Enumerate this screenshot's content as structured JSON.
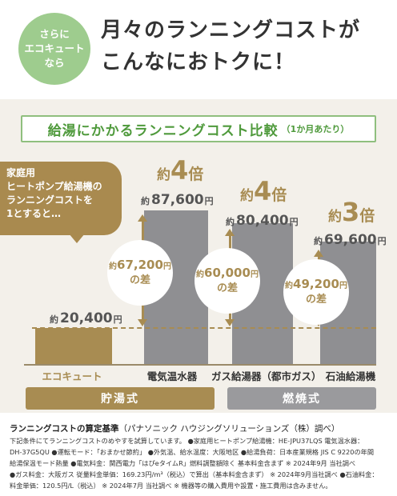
{
  "badge": {
    "line1": "さらに",
    "line2": "エコキュート",
    "line3": "なら"
  },
  "headline": {
    "line1": "月々のランニングコストが",
    "line2": "こんなにおトクに！"
  },
  "panel": {
    "title": "給湯にかかるランニングコスト比較",
    "subtitle": "（1か月あたり）"
  },
  "callout": {
    "line1": "家庭用",
    "line2": "ヒートポンプ給湯機の",
    "line3": "ランニングコストを",
    "line4": "1とすると…"
  },
  "bars": [
    {
      "label": "エコキュート",
      "price_prefix": "約",
      "price": "20,400",
      "price_unit": "円"
    },
    {
      "label": "電気温水器",
      "price_prefix": "約",
      "price": "87,600",
      "price_unit": "円",
      "mult_prefix": "約",
      "mult": "4",
      "mult_unit": "倍",
      "diff_prefix": "約",
      "diff": "67,200",
      "diff_unit": "円",
      "diff_suffix": "の差"
    },
    {
      "label": "ガス給湯器（都市ガス）",
      "price_prefix": "約",
      "price": "80,400",
      "price_unit": "円",
      "mult_prefix": "約",
      "mult": "4",
      "mult_unit": "倍",
      "diff_prefix": "約",
      "diff": "60,000",
      "diff_unit": "円",
      "diff_suffix": "の差"
    },
    {
      "label": "石油給湯機",
      "price_prefix": "約",
      "price": "69,600",
      "price_unit": "円",
      "mult_prefix": "約",
      "mult": "3",
      "mult_unit": "倍",
      "diff_prefix": "約",
      "diff": "49,200",
      "diff_unit": "円",
      "diff_suffix": "の差"
    }
  ],
  "groups": {
    "storage": "貯湯式",
    "combustion": "燃焼式"
  },
  "footnote": {
    "title": "ランニングコストの算定基準",
    "title_note": "（パナソニック ハウジングソリューションズ（株）調べ）",
    "lines": [
      "下記条件にてランニングコストのめやすを試算しています。 ●家庭用ヒートポンプ給湯機：HE-JPU37LQS 電気温水器：",
      "DH-37G5QU ●運転モード：「おまかせ節約」 ●外気温、給水温度：大阪地区 ●給湯負荷：日本産業規格 JIS C 9220の年間",
      "給湯保温モード熱量 ●電気料金：関西電力「はぴeタイムR」燃料調整額除く 基本料金含まず ※ 2024年9月 当社調べ",
      "●ガス料金：大阪ガス 従量料金単価：169.23円/m³（税込）で算出（基本料金含まず） ※ 2024年9月当社調べ ●石油料金：",
      "料金単価：120.5円/L（税込） ※ 2024年7月 当社調べ ※ 機器等の購入費用や設置・施工費用は含みません。"
    ]
  },
  "chart_data": {
    "type": "bar",
    "title": "給湯にかかるランニングコスト比較",
    "subtitle": "（1か月あたり）",
    "categories": [
      "エコキュート",
      "電気温水器",
      "ガス給湯器（都市ガス）",
      "石油給湯機"
    ],
    "values": [
      20400,
      87600,
      80400,
      69600
    ],
    "unit": "円",
    "ratios": [
      "—",
      "約4倍",
      "約4倍",
      "約3倍"
    ],
    "differences": [
      0,
      67200,
      60000,
      49200
    ],
    "groups": [
      {
        "name": "貯湯式",
        "categories": [
          "エコキュート",
          "電気温水器"
        ]
      },
      {
        "name": "燃焼式",
        "categories": [
          "ガス給湯器（都市ガス）",
          "石油給湯機"
        ]
      }
    ],
    "colors": {
      "ecocute": "#a88c52",
      "others": "#8f8f92"
    },
    "reference_line": 20400
  },
  "colors": {
    "green": "#9ecc8e",
    "green_text": "#4f9a3c",
    "gold": "#a88c52",
    "gray": "#8f8f92",
    "panel_bg": "#f3f0ea",
    "group_storage": "#a88c52",
    "group_combustion": "#9a9a9d"
  }
}
